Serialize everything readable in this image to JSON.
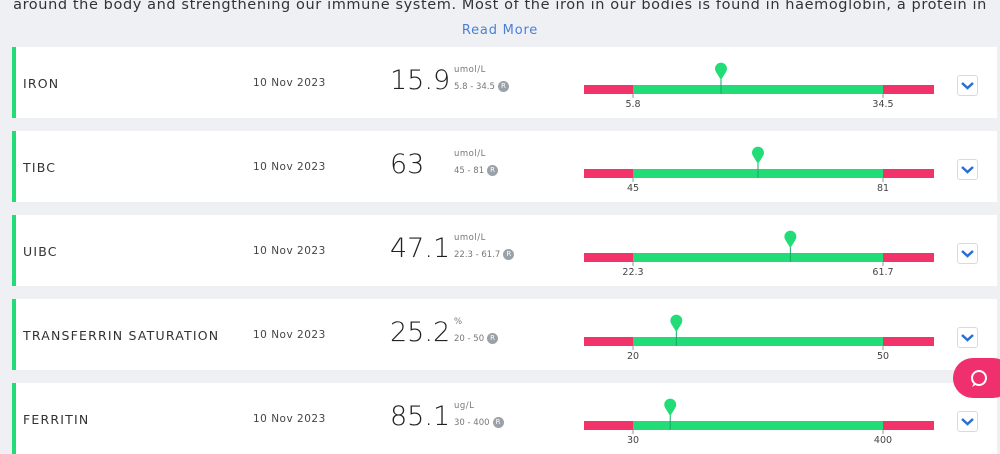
{
  "intro": {
    "text": "around the body and strengthening our immune system. Most of the iron in our bodies is found in haemoglobin, a protein in",
    "link": "Read More"
  },
  "badge": "R",
  "rows": [
    {
      "name": "IRON",
      "date": "10 Nov 2023",
      "value": 15.9,
      "unit": "umol/L",
      "range": "5.8 - 34.5",
      "low": 5.8,
      "high": 34.5
    },
    {
      "name": "TIBC",
      "date": "10 Nov 2023",
      "value": 63,
      "unit": "umol/L",
      "range": "45 - 81",
      "low": 45,
      "high": 81
    },
    {
      "name": "UIBC",
      "date": "10 Nov 2023",
      "value": 47.1,
      "unit": "umol/L",
      "range": "22.3 - 61.7",
      "low": 22.3,
      "high": 61.7
    },
    {
      "name": "TRANSFERRIN SATURATION",
      "date": "10 Nov 2023",
      "value": 25.2,
      "unit": "%",
      "range": "20 - 50",
      "low": 20,
      "high": 50
    },
    {
      "name": "FERRITIN",
      "date": "10 Nov 2023",
      "value": 85.1,
      "unit": "ug/L",
      "range": "30 - 400",
      "low": 30,
      "high": 400
    }
  ]
}
